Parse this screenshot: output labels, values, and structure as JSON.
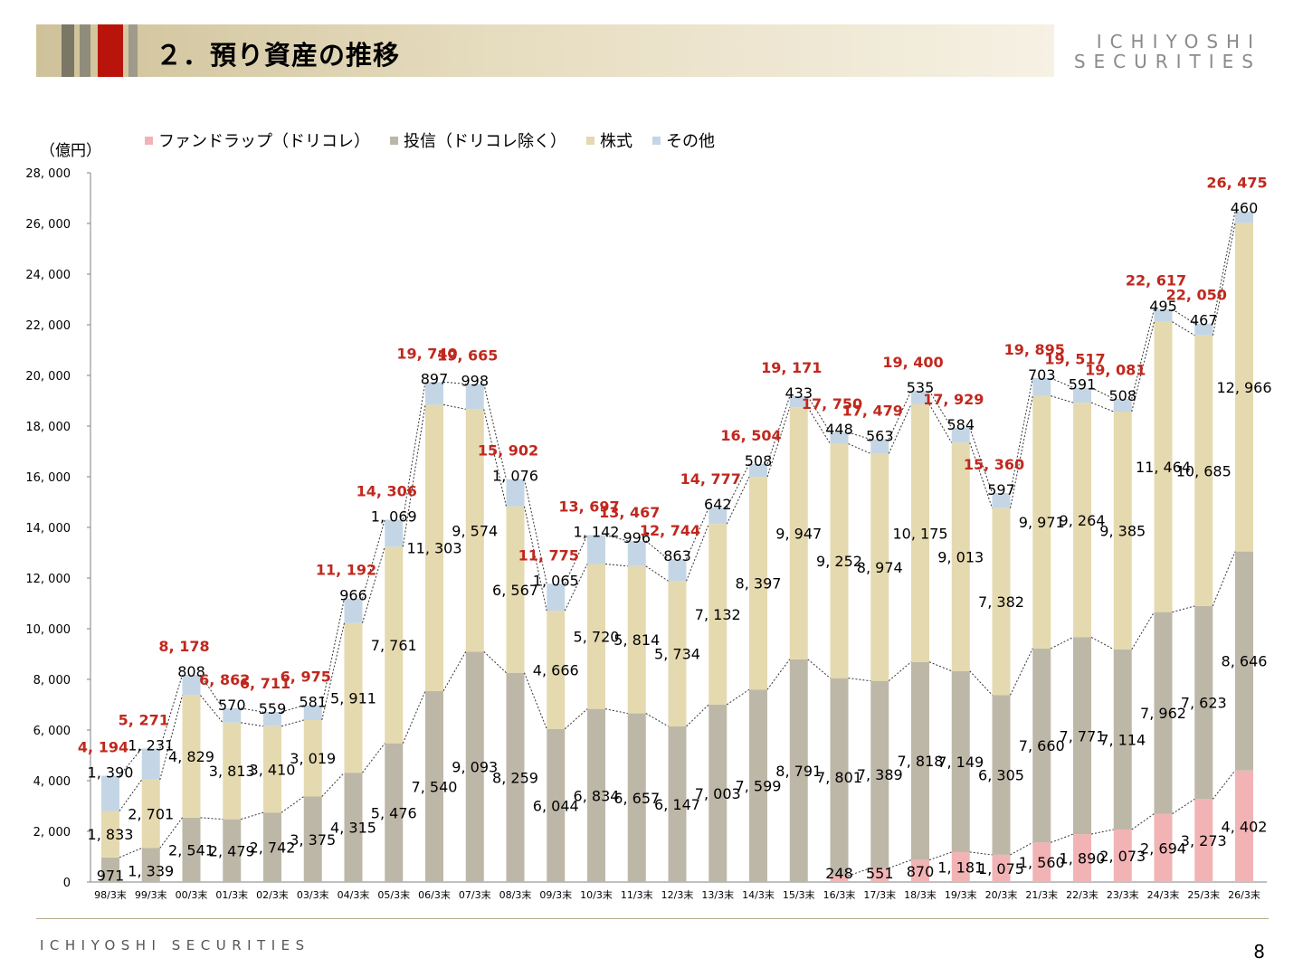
{
  "header": {
    "title": "２．預り資産の推移",
    "brand_line1": "ICHIYOSHI",
    "brand_line2": "SECURITIES",
    "stripe_colors": [
      "#7a7766",
      "#8f8c7c",
      "#b8140c",
      "#9e9b8a"
    ]
  },
  "unit_label": "（億円）",
  "legend": [
    {
      "name": "ファンドラップ（ドリコレ）",
      "color": "#f2b3b5"
    },
    {
      "name": "投信（ドリコレ除く）",
      "color": "#bdb7a8"
    },
    {
      "name": "株式",
      "color": "#e5d9af"
    },
    {
      "name": "その他",
      "color": "#c4d6e6"
    }
  ],
  "chart_data": {
    "type": "bar",
    "stacked": true,
    "ylim": [
      0,
      28000
    ],
    "yticks": [
      0,
      2000,
      4000,
      6000,
      8000,
      10000,
      12000,
      14000,
      16000,
      18000,
      20000,
      22000,
      24000,
      26000,
      28000
    ],
    "ytick_labels": [
      "0",
      "2, 000",
      "4, 000",
      "6, 000",
      "8, 000",
      "10, 000",
      "12, 000",
      "14, 000",
      "16, 000",
      "18, 000",
      "20, 000",
      "22, 000",
      "24, 000",
      "26, 000",
      "28, 000"
    ],
    "categories": [
      "98/3末",
      "99/3末",
      "00/3末",
      "01/3末",
      "02/3末",
      "03/3末",
      "04/3末",
      "05/3末",
      "06/3末",
      "07/3末",
      "08/3末",
      "09/3末",
      "10/3末",
      "11/3末",
      "12/3末",
      "13/3末",
      "14/3末",
      "15/3末",
      "16/3末",
      "17/3末",
      "18/3末",
      "19/3末",
      "20/3末",
      "21/3末",
      "22/3末",
      "23/3末",
      "24/3末",
      "25/3末",
      "26/3末"
    ],
    "series": [
      {
        "name": "ファンドラップ（ドリコレ）",
        "color": "#f2b3b5",
        "values": [
          null,
          null,
          null,
          null,
          null,
          null,
          null,
          null,
          null,
          null,
          null,
          null,
          null,
          null,
          null,
          null,
          null,
          null,
          248,
          551,
          870,
          1181,
          1075,
          1560,
          1890,
          2073,
          2694,
          3273,
          4402
        ],
        "labels": [
          "",
          "",
          "",
          "",
          "",
          "",
          "",
          "",
          "",
          "",
          "",
          "",
          "",
          "",
          "",
          "",
          "",
          "",
          "248",
          "551",
          "870",
          "1, 181",
          "1, 075",
          "1, 560",
          "1, 890",
          "2, 073",
          "2, 694",
          "3, 273",
          "4, 402"
        ]
      },
      {
        "name": "投信（ドリコレ除く）",
        "color": "#bdb7a8",
        "values": [
          971,
          1339,
          2541,
          2479,
          2742,
          3375,
          4315,
          5476,
          7540,
          9093,
          8259,
          6044,
          6834,
          6657,
          6147,
          7003,
          7599,
          8791,
          7801,
          7389,
          7818,
          7149,
          6305,
          7660,
          7771,
          7114,
          7962,
          7623,
          8646
        ],
        "labels": [
          "971",
          "1, 339",
          "2, 541",
          "2, 479",
          "2, 742",
          "3, 375",
          "4, 315",
          "5, 476",
          "7, 540",
          "9, 093",
          "8, 259",
          "6, 044",
          "6, 834",
          "6, 657",
          "6, 147",
          "7, 003",
          "7, 599",
          "8, 791",
          "7, 801",
          "7, 389",
          "7, 818",
          "7, 149",
          "6, 305",
          "7, 660",
          "7, 771",
          "7, 114",
          "7, 962",
          "7, 623",
          "8, 646"
        ]
      },
      {
        "name": "株式",
        "color": "#e5d9af",
        "values": [
          1833,
          2701,
          4829,
          3813,
          3410,
          3019,
          5911,
          7761,
          11303,
          9574,
          6567,
          4666,
          5720,
          5814,
          5734,
          7132,
          8397,
          9947,
          9252,
          8974,
          10175,
          9013,
          7382,
          9971,
          9264,
          9385,
          11464,
          10685,
          12966
        ],
        "labels": [
          "1, 833",
          "2, 701",
          "4, 829",
          "3, 813",
          "3, 410",
          "3, 019",
          "5, 911",
          "7, 761",
          "11, 303",
          "9, 574",
          "6, 567",
          "4, 666",
          "5, 720",
          "5, 814",
          "5, 734",
          "7, 132",
          "8, 397",
          "9, 947",
          "9, 252",
          "8, 974",
          "10, 175",
          "9, 013",
          "7, 382",
          "9, 971",
          "9, 264",
          "9, 385",
          "11, 464",
          "10, 685",
          "12, 966"
        ]
      },
      {
        "name": "その他",
        "color": "#c4d6e6",
        "values": [
          1390,
          1231,
          808,
          570,
          559,
          581,
          966,
          1069,
          897,
          998,
          1076,
          1065,
          1142,
          996,
          863,
          642,
          508,
          433,
          448,
          563,
          535,
          584,
          597,
          703,
          591,
          508,
          495,
          467,
          460
        ],
        "labels": [
          "1, 390",
          "1, 231",
          "808",
          "570",
          "559",
          "581",
          "966",
          "1, 069",
          "897",
          "998",
          "1, 076",
          "1, 065",
          "1, 142",
          "996",
          "863",
          "642",
          "508",
          "433",
          "448",
          "563",
          "535",
          "584",
          "597",
          "703",
          "591",
          "508",
          "495",
          "467",
          "460"
        ]
      }
    ],
    "totals": [
      4194,
      5271,
      8178,
      6862,
      6711,
      6975,
      11192,
      14306,
      19740,
      19665,
      15902,
      11775,
      13697,
      13467,
      12744,
      14777,
      16504,
      19171,
      17750,
      17479,
      19400,
      17929,
      15360,
      19895,
      19517,
      19081,
      22617,
      22050,
      26475
    ],
    "total_labels": [
      "4, 194",
      "5, 271",
      "8, 178",
      "6, 862",
      "6, 711",
      "6, 975",
      "11, 192",
      "14, 306",
      "19, 740",
      "19, 665",
      "15, 902",
      "11, 775",
      "13, 697",
      "13, 467",
      "12, 744",
      "14, 777",
      "16, 504",
      "19, 171",
      "17, 750",
      "17, 479",
      "19, 400",
      "17, 929",
      "15, 360",
      "19, 895",
      "19, 517",
      "19, 081",
      "22, 617",
      "22, 050",
      "26, 475"
    ],
    "total_label_color": "#c0281e",
    "connector_lines": "dotted",
    "legend_position": "top"
  },
  "footer": {
    "brand": "ICHIYOSHI SECURITIES",
    "page_number": "8"
  }
}
